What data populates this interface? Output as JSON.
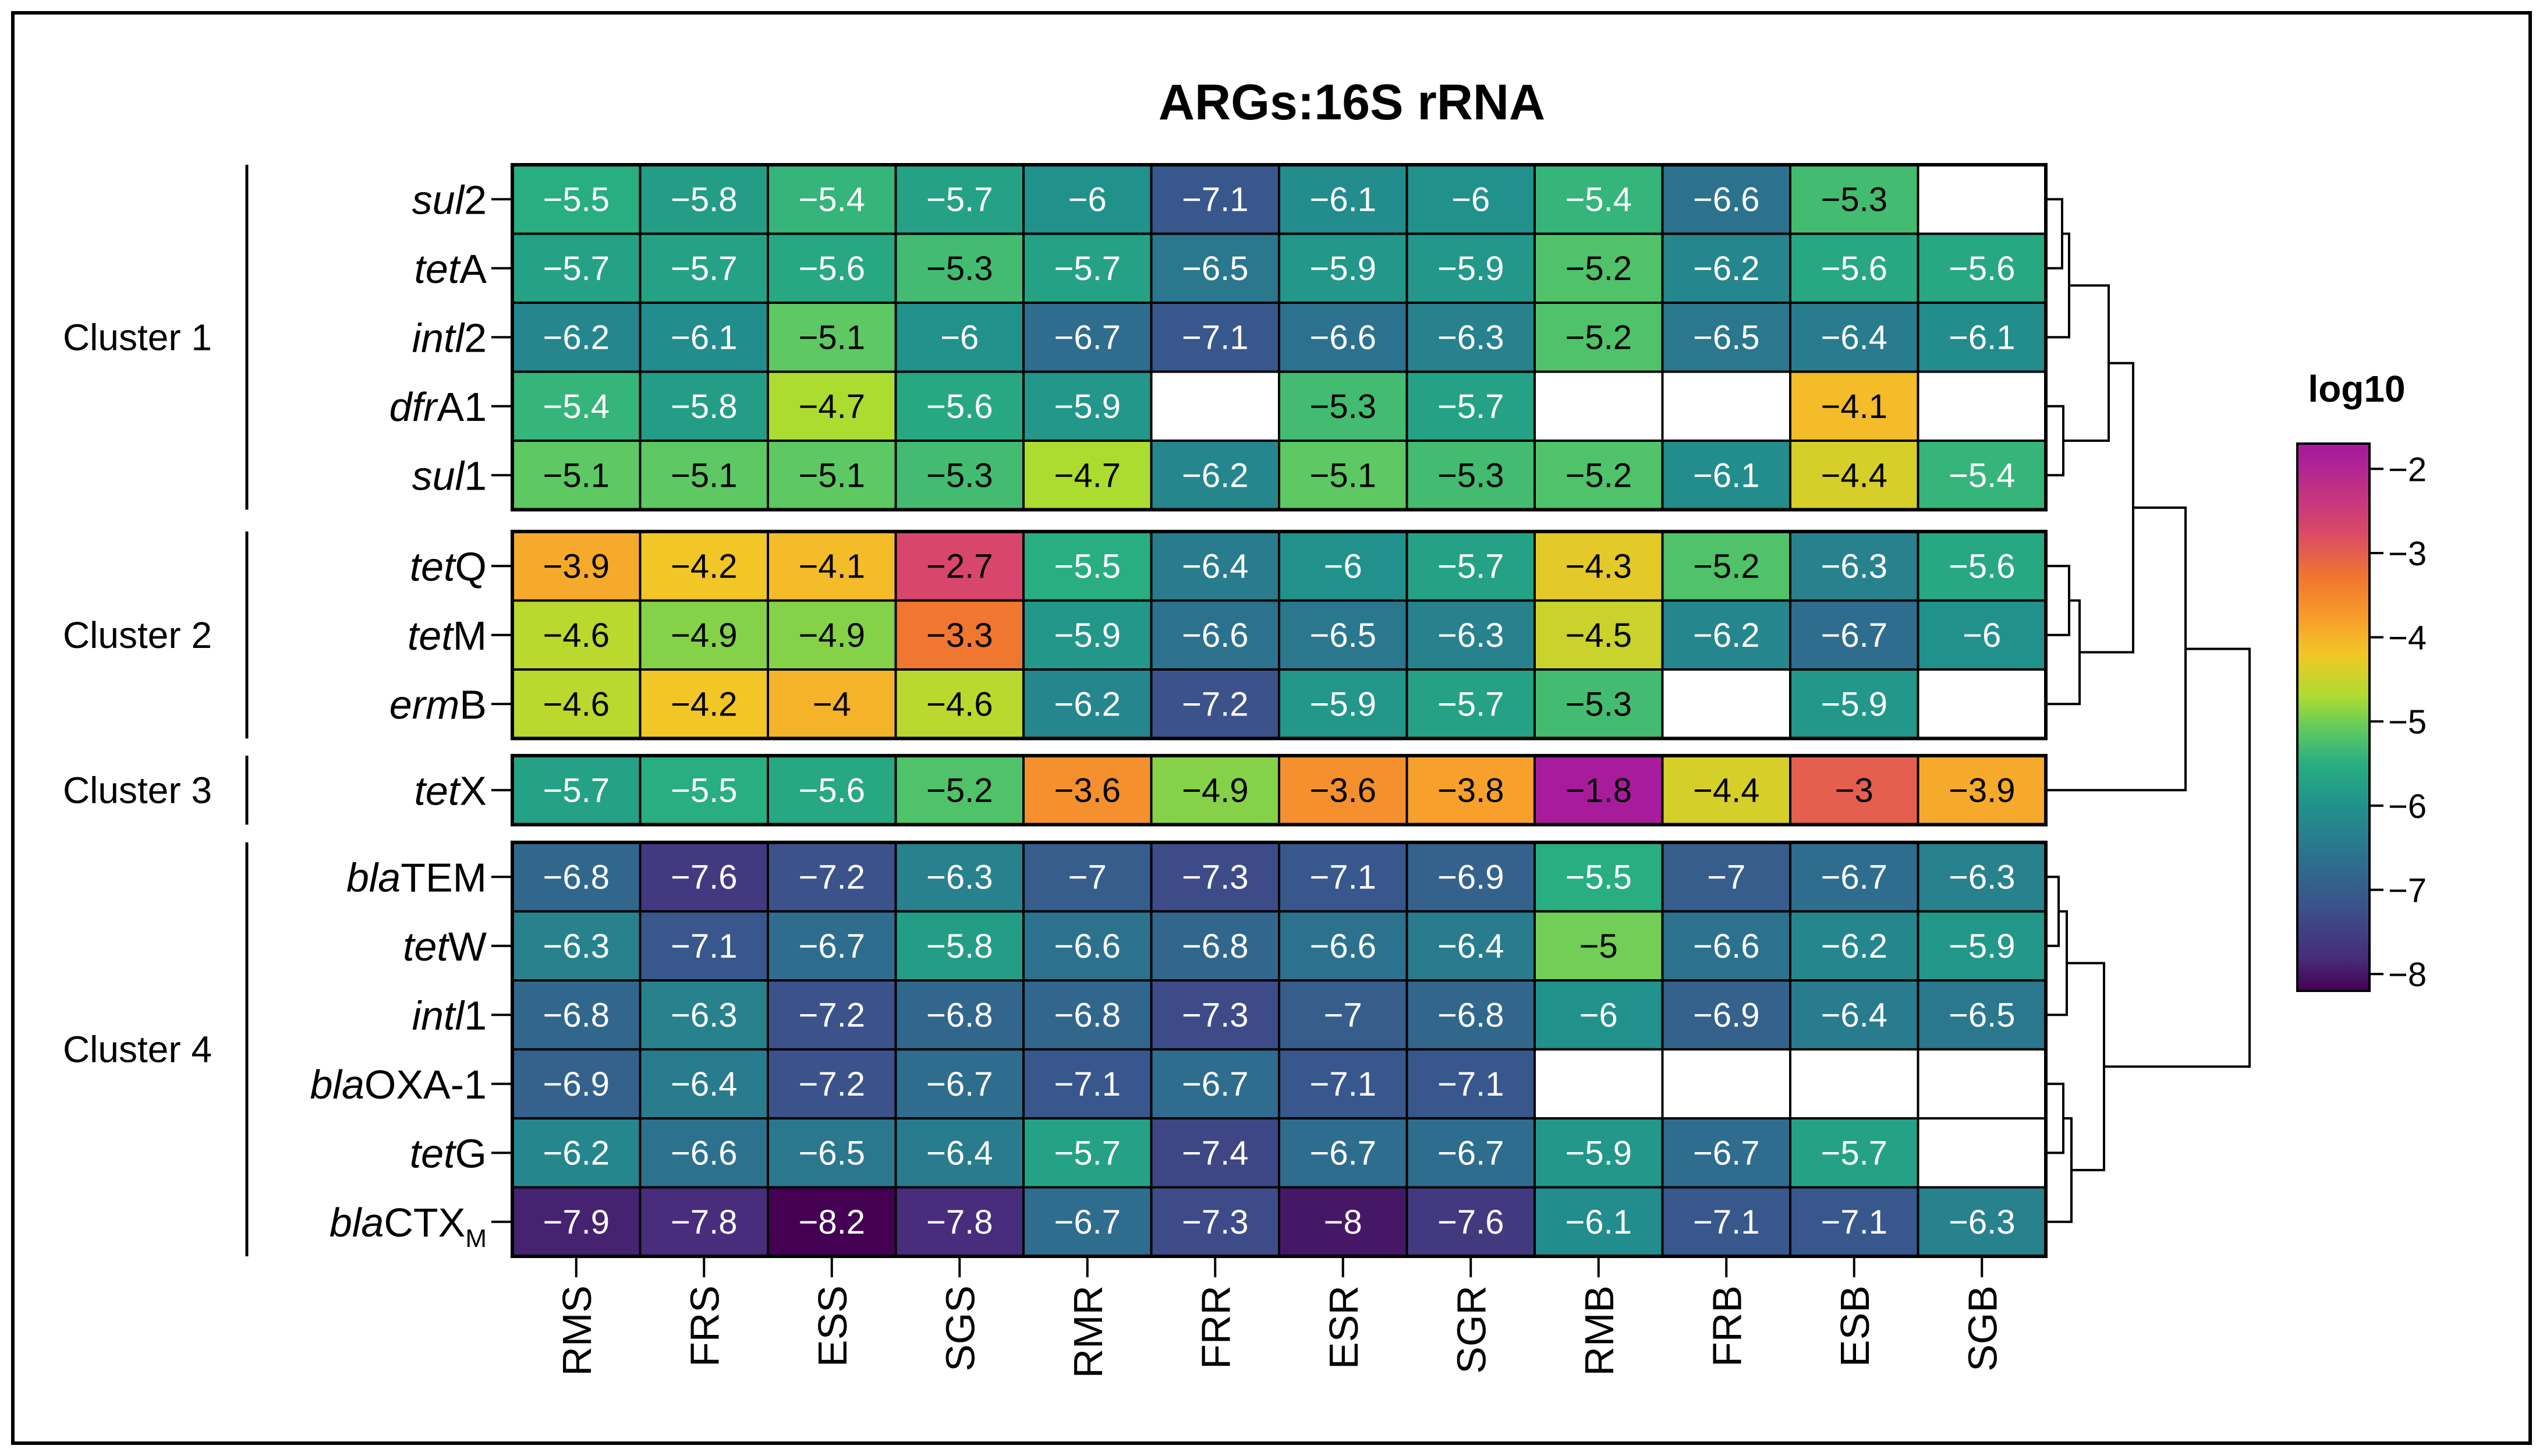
{
  "chart_data": {
    "type": "heatmap",
    "title": "ARGs:16S rRNA",
    "columns": [
      "RMS",
      "FRS",
      "ESS",
      "SGS",
      "RMR",
      "FRR",
      "ESR",
      "SGR",
      "RMB",
      "FRB",
      "ESB",
      "SGB"
    ],
    "rows": [
      {
        "italic": "sul",
        "plain": "2",
        "sub": "",
        "values": [
          -5.5,
          -5.8,
          -5.4,
          -5.7,
          -6,
          -7.1,
          -6.1,
          -6,
          -5.4,
          -6.6,
          -5.3,
          null
        ]
      },
      {
        "italic": "tet",
        "plain": "A",
        "sub": "",
        "values": [
          -5.7,
          -5.7,
          -5.6,
          -5.3,
          -5.7,
          -6.5,
          -5.9,
          -5.9,
          -5.2,
          -6.2,
          -5.6,
          -5.6
        ]
      },
      {
        "italic": "intl",
        "plain": "2",
        "sub": "",
        "values": [
          -6.2,
          -6.1,
          -5.1,
          -6,
          -6.7,
          -7.1,
          -6.6,
          -6.3,
          -5.2,
          -6.5,
          -6.4,
          -6.1
        ]
      },
      {
        "italic": "dfr",
        "plain": "A1",
        "sub": "",
        "values": [
          -5.4,
          -5.8,
          -4.7,
          -5.6,
          -5.9,
          null,
          -5.3,
          -5.7,
          null,
          null,
          -4.1,
          null
        ]
      },
      {
        "italic": "sul",
        "plain": "1",
        "sub": "",
        "values": [
          -5.1,
          -5.1,
          -5.1,
          -5.3,
          -4.7,
          -6.2,
          -5.1,
          -5.3,
          -5.2,
          -6.1,
          -4.4,
          -5.4
        ]
      },
      {
        "italic": "tet",
        "plain": "Q",
        "sub": "",
        "values": [
          -3.9,
          -4.2,
          -4.1,
          -2.7,
          -5.5,
          -6.4,
          -6,
          -5.7,
          -4.3,
          -5.2,
          -6.3,
          -5.6
        ]
      },
      {
        "italic": "tet",
        "plain": "M",
        "sub": "",
        "values": [
          -4.6,
          -4.9,
          -4.9,
          -3.3,
          -5.9,
          -6.6,
          -6.5,
          -6.3,
          -4.5,
          -6.2,
          -6.7,
          -6
        ]
      },
      {
        "italic": "erm",
        "plain": "B",
        "sub": "",
        "values": [
          -4.6,
          -4.2,
          -4,
          -4.6,
          -6.2,
          -7.2,
          -5.9,
          -5.7,
          -5.3,
          null,
          -5.9,
          null
        ]
      },
      {
        "italic": "tet",
        "plain": "X",
        "sub": "",
        "values": [
          -5.7,
          -5.5,
          -5.6,
          -5.2,
          -3.6,
          -4.9,
          -3.6,
          -3.8,
          -1.8,
          -4.4,
          -3,
          -3.9
        ]
      },
      {
        "italic": "bla",
        "plain": "TEM",
        "sub": "",
        "values": [
          -6.8,
          -7.6,
          -7.2,
          -6.3,
          -7,
          -7.3,
          -7.1,
          -6.9,
          -5.5,
          -7,
          -6.7,
          -6.3
        ]
      },
      {
        "italic": "tet",
        "plain": "W",
        "sub": "",
        "values": [
          -6.3,
          -7.1,
          -6.7,
          -5.8,
          -6.6,
          -6.8,
          -6.6,
          -6.4,
          -5,
          -6.6,
          -6.2,
          -5.9
        ]
      },
      {
        "italic": "intl",
        "plain": "1",
        "sub": "",
        "values": [
          -6.8,
          -6.3,
          -7.2,
          -6.8,
          -6.8,
          -7.3,
          -7,
          -6.8,
          -6,
          -6.9,
          -6.4,
          -6.5
        ]
      },
      {
        "italic": "bla",
        "plain": "OXA-1",
        "sub": "",
        "values": [
          -6.9,
          -6.4,
          -7.2,
          -6.7,
          -7.1,
          -6.7,
          -7.1,
          -7.1,
          null,
          null,
          null,
          null
        ]
      },
      {
        "italic": "tet",
        "plain": "G",
        "sub": "",
        "values": [
          -6.2,
          -6.6,
          -6.5,
          -6.4,
          -5.7,
          -7.4,
          -6.7,
          -6.7,
          -5.9,
          -6.7,
          -5.7,
          null
        ]
      },
      {
        "italic": "bla",
        "plain": "CTX",
        "sub": "M",
        "values": [
          -7.9,
          -7.8,
          -8.2,
          -7.8,
          -6.7,
          -7.3,
          -8,
          -7.6,
          -6.1,
          -7.1,
          -7.1,
          -6.3
        ]
      }
    ],
    "clusters": [
      {
        "label": "Cluster 1",
        "rows": [
          0,
          4
        ]
      },
      {
        "label": "Cluster 2",
        "rows": [
          5,
          7
        ]
      },
      {
        "label": "Cluster 3",
        "rows": [
          8,
          8
        ]
      },
      {
        "label": "Cluster 4",
        "rows": [
          9,
          14
        ]
      }
    ],
    "legend": {
      "title": "log10",
      "min": -8.2,
      "max": -1.7,
      "ticks": [
        "−2",
        "−3",
        "−4",
        "−5",
        "−6",
        "−7",
        "−8"
      ],
      "tick_values": [
        -2,
        -3,
        -4,
        -5,
        -6,
        -7,
        -8
      ]
    },
    "colormap": [
      "#440154",
      "#472d7b",
      "#3b528b",
      "#2c728e",
      "#21918c",
      "#28ae80",
      "#5ec962",
      "#addc30",
      "#f2c626",
      "#f7a02c",
      "#f0772f",
      "#d8466c",
      "#a81c9c"
    ],
    "colormap_stops": [
      -8.2,
      -7.8,
      -7.2,
      -6.6,
      -6.0,
      -5.5,
      -5.1,
      -4.7,
      -4.2,
      -3.8,
      -3.3,
      -2.7,
      -1.8
    ]
  }
}
